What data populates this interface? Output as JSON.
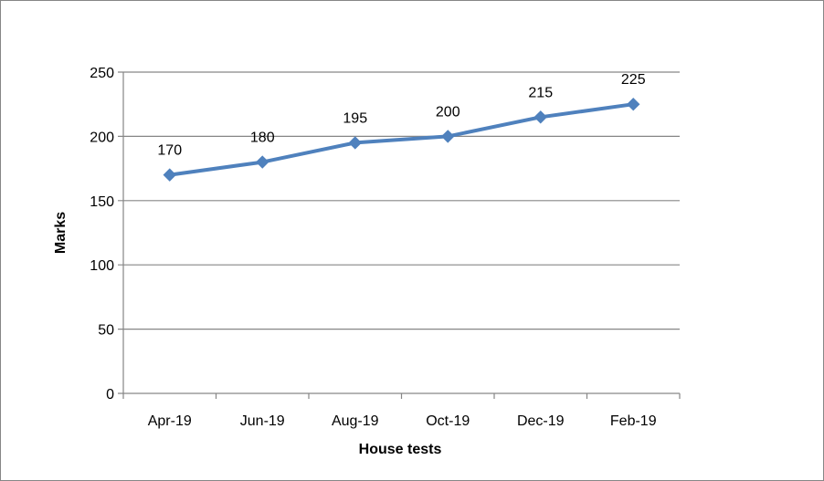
{
  "chart_data": {
    "type": "line",
    "categories": [
      "Apr-19",
      "Jun-19",
      "Aug-19",
      "Oct-19",
      "Dec-19",
      "Feb-19"
    ],
    "series": [
      {
        "values": [
          170,
          180,
          195,
          200,
          215,
          225
        ],
        "color": "#4F81BD",
        "marker": "diamond"
      }
    ],
    "xlabel": "House tests",
    "ylabel": "Marks",
    "ylim": [
      0,
      250
    ],
    "yticks": [
      0,
      50,
      100,
      150,
      200,
      250
    ],
    "grid": true,
    "legend": "none",
    "data_labels": [
      "170",
      "180",
      "195",
      "200",
      "215",
      "225"
    ],
    "gridline_color": "#868686"
  }
}
